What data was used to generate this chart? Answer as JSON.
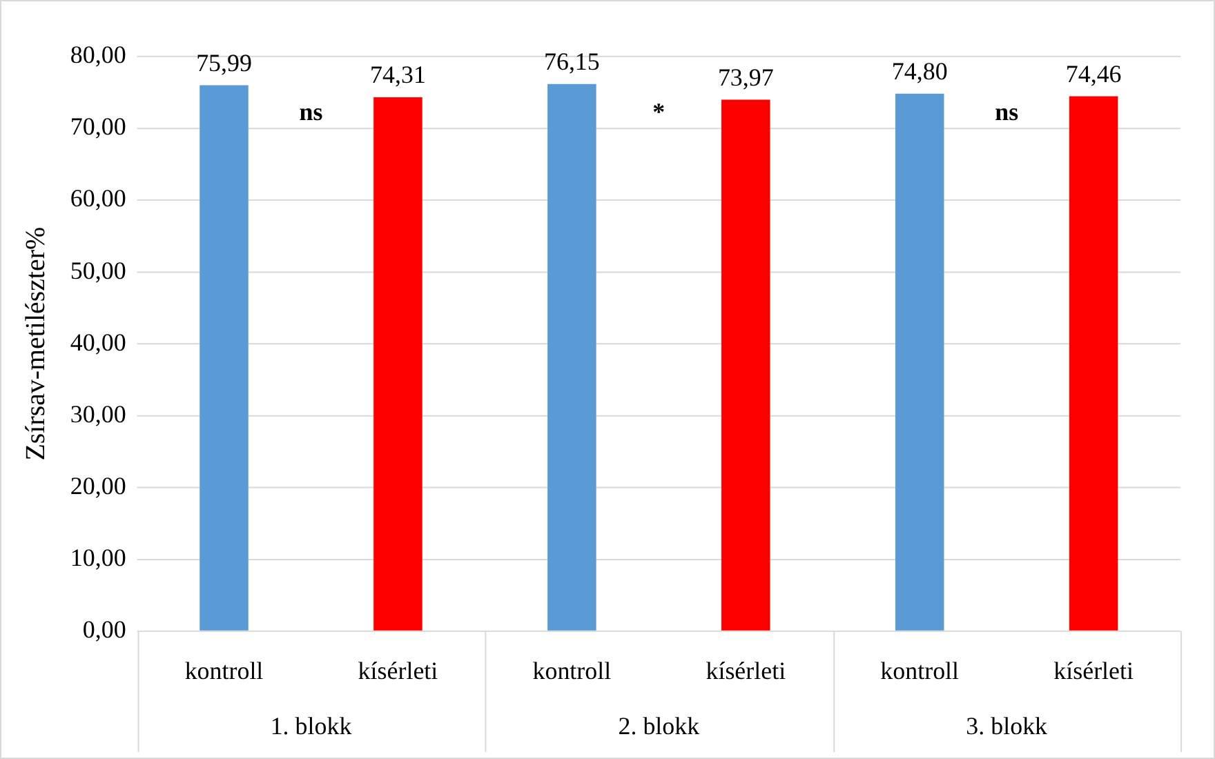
{
  "chart_data": {
    "type": "bar",
    "ylabel": "Zsírsav-metilészter%",
    "categories": [
      "1. blokk",
      "2. blokk",
      "3. blokk"
    ],
    "series": [
      {
        "name": "kontroll",
        "color": "#5b9bd5",
        "values": [
          75.99,
          76.15,
          74.8
        ],
        "value_labels": [
          "75,99",
          "76,15",
          "74,80"
        ]
      },
      {
        "name": "kísérleti",
        "color": "#ff0000",
        "values": [
          74.31,
          73.97,
          74.46
        ],
        "value_labels": [
          "74,31",
          "73,97",
          "74,46"
        ]
      }
    ],
    "ylim": [
      0,
      80
    ],
    "yticks": [
      {
        "value": 0,
        "label": "0,00"
      },
      {
        "value": 10,
        "label": "10,00"
      },
      {
        "value": 20,
        "label": "20,00"
      },
      {
        "value": 30,
        "label": "30,00"
      },
      {
        "value": 40,
        "label": "40,00"
      },
      {
        "value": 50,
        "label": "50,00"
      },
      {
        "value": 60,
        "label": "60,00"
      },
      {
        "value": 70,
        "label": "70,00"
      },
      {
        "value": 80,
        "label": "80,00"
      }
    ],
    "grid": "y",
    "annotations": [
      "ns",
      "*",
      "ns"
    ]
  }
}
